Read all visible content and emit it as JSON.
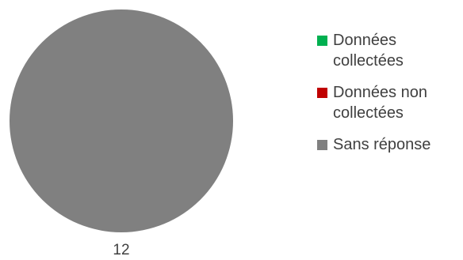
{
  "chart_data": {
    "type": "pie",
    "title": "",
    "categories": [
      "Données collectées",
      "Données non collectées",
      "Sans réponse"
    ],
    "values": [
      0,
      0,
      12
    ],
    "colors": [
      "#00b050",
      "#c00000",
      "#808080"
    ],
    "data_labels": [
      "12"
    ],
    "legend_position": "right"
  }
}
